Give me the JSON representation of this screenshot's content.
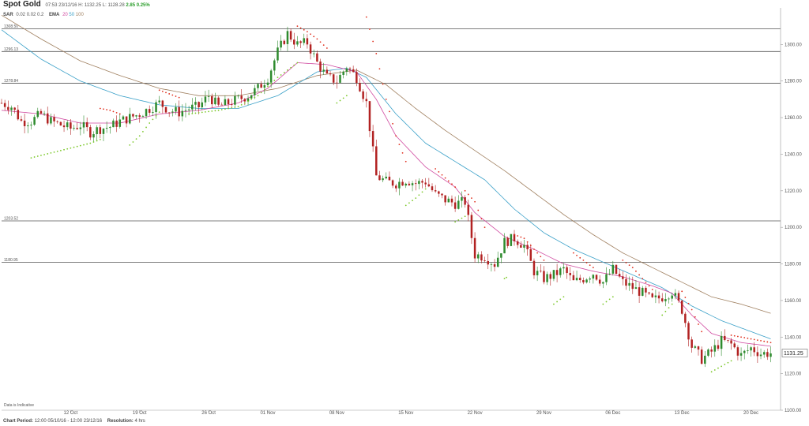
{
  "header": {
    "title": "Spot Gold",
    "time": "07:53 23/12/16",
    "high_label": "H:",
    "high": "1132.25",
    "low_label": "L:",
    "low": "1128.28",
    "change": "2.85 0.25%",
    "sar_label": "SAR",
    "sar_params": "0.02 0.02 0.2",
    "ema_label": "EMA",
    "ema20": "20",
    "ema50": "50",
    "ema100": "100"
  },
  "footer": {
    "indicative": "Data is Indicative",
    "period_label": "Chart Period:",
    "period": "12:00 05/10/16 - 12:00 23/12/16",
    "resolution_label": "Resolution:",
    "resolution": "4 hrs"
  },
  "chart_data": {
    "type": "candlestick",
    "title": "Spot Gold",
    "ylim": [
      1100,
      1320
    ],
    "y_ticks": [
      1100,
      1120,
      1140,
      1160,
      1180,
      1200,
      1220,
      1240,
      1260,
      1280,
      1300
    ],
    "y_tick_labels": [
      "1100.00",
      "1120.00",
      "1140.00",
      "1160.00",
      "1180.00",
      "1200.00",
      "1220.00",
      "1240.00",
      "1260.00",
      "1280.00",
      "1300.00"
    ],
    "x_ticks": [
      {
        "label": "12 Oct",
        "day": 7
      },
      {
        "label": "19 Oct",
        "day": 14
      },
      {
        "label": "26 Oct",
        "day": 21
      },
      {
        "label": "01 Nov",
        "day": 27
      },
      {
        "label": "08 Nov",
        "day": 34
      },
      {
        "label": "15 Nov",
        "day": 41
      },
      {
        "label": "22 Nov",
        "day": 48
      },
      {
        "label": "29 Nov",
        "day": 55
      },
      {
        "label": "06 Dec",
        "day": 62
      },
      {
        "label": "13 Dec",
        "day": 69
      },
      {
        "label": "20 Dec",
        "day": 76
      }
    ],
    "x_range": [
      0,
      79
    ],
    "support_resistance": [
      {
        "value": 1308.5,
        "label": "1308.50"
      },
      {
        "value": 1296.13,
        "label": "1296.13"
      },
      {
        "value": 1278.84,
        "label": "1278.84"
      },
      {
        "value": 1203.52,
        "label": "1203.52"
      },
      {
        "value": 1180.95,
        "label": "1180.95"
      }
    ],
    "last_price": {
      "value": 1131.25,
      "label": "1131.25"
    },
    "close_path": [
      [
        0,
        1268
      ],
      [
        1,
        1266
      ],
      [
        2,
        1258
      ],
      [
        3,
        1258
      ],
      [
        4,
        1262
      ],
      [
        5,
        1258
      ],
      [
        6,
        1256
      ],
      [
        7,
        1254
      ],
      [
        8,
        1256
      ],
      [
        9,
        1252
      ],
      [
        10,
        1254
      ],
      [
        11,
        1255
      ],
      [
        12,
        1258
      ],
      [
        13,
        1260
      ],
      [
        14,
        1262
      ],
      [
        15,
        1265
      ],
      [
        16,
        1268
      ],
      [
        17,
        1264
      ],
      [
        18,
        1263
      ],
      [
        19,
        1265
      ],
      [
        20,
        1266
      ],
      [
        21,
        1272
      ],
      [
        22,
        1266
      ],
      [
        23,
        1268
      ],
      [
        24,
        1270
      ],
      [
        25,
        1272
      ],
      [
        26,
        1276
      ],
      [
        27,
        1282
      ],
      [
        28,
        1296
      ],
      [
        29,
        1306
      ],
      [
        30,
        1300
      ],
      [
        31,
        1301
      ],
      [
        32,
        1290
      ],
      [
        33,
        1282
      ],
      [
        34,
        1280
      ],
      [
        35,
        1288
      ],
      [
        36,
        1282
      ],
      [
        37,
        1268
      ],
      [
        38,
        1228
      ],
      [
        39,
        1225
      ],
      [
        40,
        1224
      ],
      [
        41,
        1226
      ],
      [
        42,
        1224
      ],
      [
        43,
        1225
      ],
      [
        44,
        1218
      ],
      [
        45,
        1215
      ],
      [
        46,
        1213
      ],
      [
        47,
        1214
      ],
      [
        48,
        1185
      ],
      [
        49,
        1184
      ],
      [
        50,
        1180
      ],
      [
        51,
        1192
      ],
      [
        52,
        1194
      ],
      [
        53,
        1190
      ],
      [
        54,
        1176
      ],
      [
        55,
        1172
      ],
      [
        56,
        1174
      ],
      [
        57,
        1177
      ],
      [
        58,
        1170
      ],
      [
        59,
        1172
      ],
      [
        60,
        1175
      ],
      [
        61,
        1170
      ],
      [
        62,
        1177
      ],
      [
        63,
        1170
      ],
      [
        64,
        1167
      ],
      [
        65,
        1164
      ],
      [
        66,
        1160
      ],
      [
        67,
        1162
      ],
      [
        68,
        1165
      ],
      [
        69,
        1155
      ],
      [
        70,
        1135
      ],
      [
        71,
        1128
      ],
      [
        72,
        1132
      ],
      [
        73,
        1138
      ],
      [
        74,
        1136
      ],
      [
        75,
        1130
      ],
      [
        76,
        1134
      ],
      [
        77,
        1131
      ],
      [
        78,
        1131.25
      ]
    ],
    "ema20_path": [
      [
        0,
        1264
      ],
      [
        4,
        1262
      ],
      [
        8,
        1257
      ],
      [
        12,
        1257
      ],
      [
        16,
        1262
      ],
      [
        20,
        1264
      ],
      [
        24,
        1268
      ],
      [
        27,
        1276
      ],
      [
        30,
        1290
      ],
      [
        33,
        1289
      ],
      [
        36,
        1285
      ],
      [
        38,
        1270
      ],
      [
        40,
        1250
      ],
      [
        43,
        1233
      ],
      [
        46,
        1222
      ],
      [
        48,
        1208
      ],
      [
        51,
        1195
      ],
      [
        54,
        1188
      ],
      [
        57,
        1180
      ],
      [
        60,
        1176
      ],
      [
        63,
        1173
      ],
      [
        66,
        1168
      ],
      [
        68,
        1164
      ],
      [
        70,
        1152
      ],
      [
        72,
        1142
      ],
      [
        75,
        1137
      ],
      [
        78,
        1135
      ]
    ],
    "ema50_path": [
      [
        0,
        1308
      ],
      [
        4,
        1292
      ],
      [
        8,
        1280
      ],
      [
        12,
        1272
      ],
      [
        16,
        1267
      ],
      [
        20,
        1265
      ],
      [
        24,
        1265
      ],
      [
        28,
        1272
      ],
      [
        32,
        1285
      ],
      [
        35,
        1287
      ],
      [
        37,
        1282
      ],
      [
        40,
        1262
      ],
      [
        43,
        1246
      ],
      [
        46,
        1236
      ],
      [
        49,
        1226
      ],
      [
        52,
        1210
      ],
      [
        55,
        1197
      ],
      [
        58,
        1188
      ],
      [
        61,
        1181
      ],
      [
        64,
        1174
      ],
      [
        67,
        1167
      ],
      [
        70,
        1157
      ],
      [
        73,
        1149
      ],
      [
        76,
        1143
      ],
      [
        78,
        1139
      ]
    ],
    "ema100_path": [
      [
        0,
        1316
      ],
      [
        4,
        1303
      ],
      [
        8,
        1291
      ],
      [
        12,
        1283
      ],
      [
        16,
        1276
      ],
      [
        20,
        1272
      ],
      [
        24,
        1272
      ],
      [
        28,
        1276
      ],
      [
        32,
        1283
      ],
      [
        36,
        1286
      ],
      [
        39,
        1278
      ],
      [
        42,
        1265
      ],
      [
        45,
        1253
      ],
      [
        48,
        1242
      ],
      [
        51,
        1231
      ],
      [
        54,
        1219
      ],
      [
        57,
        1207
      ],
      [
        60,
        1196
      ],
      [
        63,
        1186
      ],
      [
        66,
        1178
      ],
      [
        69,
        1170
      ],
      [
        72,
        1162
      ],
      [
        75,
        1158
      ],
      [
        78,
        1153
      ]
    ],
    "sar_segments": [
      {
        "trend": "up",
        "points": [
          [
            3,
            1238
          ],
          [
            6,
            1242
          ],
          [
            9,
            1246
          ],
          [
            10,
            1248
          ]
        ]
      },
      {
        "trend": "down",
        "points": [
          [
            10,
            1265
          ],
          [
            11,
            1264
          ],
          [
            12,
            1262
          ]
        ]
      },
      {
        "trend": "up",
        "points": [
          [
            13,
            1245
          ],
          [
            14,
            1250
          ],
          [
            15,
            1257
          ],
          [
            16,
            1263
          ]
        ]
      },
      {
        "trend": "down",
        "points": [
          [
            16,
            1275
          ],
          [
            17,
            1273
          ],
          [
            18,
            1271
          ]
        ]
      },
      {
        "trend": "up",
        "points": [
          [
            19,
            1262
          ],
          [
            22,
            1264
          ],
          [
            24,
            1266
          ],
          [
            26,
            1272
          ],
          [
            28,
            1282
          ],
          [
            30,
            1290
          ]
        ]
      },
      {
        "trend": "down",
        "points": [
          [
            30,
            1310
          ],
          [
            31,
            1307
          ],
          [
            32,
            1303
          ],
          [
            33,
            1298
          ]
        ]
      },
      {
        "trend": "up",
        "points": [
          [
            34,
            1268
          ],
          [
            35,
            1272
          ]
        ]
      },
      {
        "trend": "down",
        "points": [
          [
            37,
            1315
          ],
          [
            38,
            1295
          ],
          [
            39,
            1270
          ],
          [
            40,
            1250
          ],
          [
            41,
            1236
          ]
        ]
      },
      {
        "trend": "up",
        "points": [
          [
            41,
            1212
          ],
          [
            42,
            1216
          ],
          [
            43,
            1221
          ]
        ]
      },
      {
        "trend": "down",
        "points": [
          [
            44,
            1232
          ],
          [
            45,
            1227
          ],
          [
            46,
            1222
          ]
        ]
      },
      {
        "trend": "up",
        "points": [
          [
            46,
            1203
          ],
          [
            47,
            1206
          ]
        ]
      },
      {
        "trend": "down",
        "points": [
          [
            47,
            1220
          ],
          [
            48,
            1214
          ],
          [
            49,
            1200
          ]
        ]
      },
      {
        "trend": "up",
        "points": [
          [
            51,
            1172
          ]
        ]
      },
      {
        "trend": "down",
        "points": [
          [
            52,
            1196
          ],
          [
            53,
            1194
          ],
          [
            54,
            1188
          ],
          [
            55,
            1182
          ]
        ]
      },
      {
        "trend": "up",
        "points": [
          [
            56,
            1158
          ],
          [
            57,
            1162
          ]
        ]
      },
      {
        "trend": "down",
        "points": [
          [
            58,
            1186
          ],
          [
            59,
            1182
          ],
          [
            60,
            1178
          ]
        ]
      },
      {
        "trend": "up",
        "points": [
          [
            61,
            1158
          ],
          [
            62,
            1162
          ]
        ]
      },
      {
        "trend": "down",
        "points": [
          [
            63,
            1182
          ],
          [
            64,
            1178
          ],
          [
            65,
            1172
          ],
          [
            66,
            1166
          ]
        ]
      },
      {
        "trend": "up",
        "points": [
          [
            67,
            1152
          ],
          [
            68,
            1158
          ]
        ]
      },
      {
        "trend": "down",
        "points": [
          [
            69,
            1165
          ],
          [
            70,
            1155
          ],
          [
            71,
            1143
          ]
        ]
      },
      {
        "trend": "up",
        "points": [
          [
            72,
            1121
          ],
          [
            73,
            1124
          ],
          [
            74,
            1127
          ]
        ]
      },
      {
        "trend": "down",
        "points": [
          [
            74,
            1141
          ],
          [
            75,
            1140
          ],
          [
            76,
            1139
          ],
          [
            77,
            1138
          ],
          [
            78,
            1137
          ]
        ]
      }
    ],
    "colors": {
      "bull": "#2e8b2e",
      "bear": "#b22222",
      "ema20": "#d04aa0",
      "ema50": "#3aa0c8",
      "ema100": "#a08060",
      "sar_up": "#7cc82a",
      "sar_down": "#e0301e",
      "sr_line": "#555555",
      "grid": "#eeeeee"
    }
  }
}
